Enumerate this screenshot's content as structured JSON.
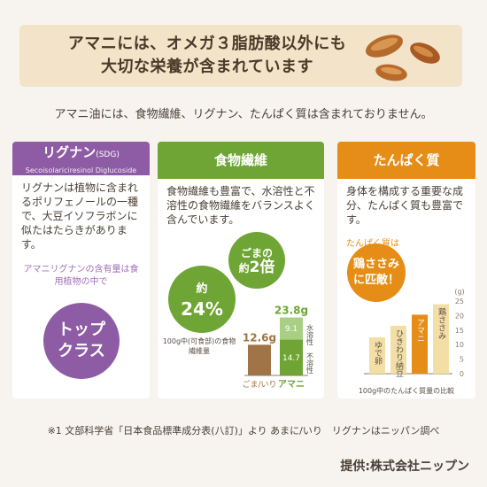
{
  "banner": {
    "title_line1": "アマニには、オメガ３脂肪酸以外にも",
    "title_line2": "大切な栄養が含まれています"
  },
  "intro": "アマニ油には、食物繊維、リグナン、たんぱく質は含まれておりません。",
  "lignan": {
    "header": "リグナン",
    "header_abbr": "(SDG)",
    "header_en": "Secoisolariciresinol Diglucoside",
    "text": "リグナンは植物に含まれるポリフェノールの一種で、大豆イソフラボンに似たはたらきがあります。",
    "note": "アマニリグナンの含有量は食用植物の中で",
    "badge_line1": "トップ",
    "badge_line2": "クラス"
  },
  "fiber": {
    "header": "食物繊維",
    "text": "食物繊維も豊富で、水溶性と不溶性の食物繊維をバランスよく含んでいます。",
    "bubble1_line1": "ごまの",
    "bubble1_prefix": "約",
    "bubble1_value": "2倍",
    "bubble2_prefix": "約",
    "bubble2_value": "24%",
    "chart_note": "100g中(可食部)の食物繊維量",
    "soluble_label": "水溶性",
    "insoluble_label": "不溶性",
    "sesame_label": "ごま/いり",
    "flax_label": "アマニ",
    "sesame_value_label": "12.6g",
    "flax_total_label": "23.8g",
    "flax_soluble_label": "9.1",
    "flax_insoluble_label": "14.7",
    "color": "#6fa534"
  },
  "protein": {
    "header": "たんぱく質",
    "text": "身体を構成する重要な成分、たんぱく質も豊富です。",
    "note": "たんぱく質は",
    "bubble_line1": "鶏ささみ",
    "bubble_line2": "に匹敵！",
    "unit": "(g)",
    "yticks": [
      "25",
      "20",
      "15",
      "10",
      "5",
      "0"
    ],
    "chart_caption": "100g中のたんぱく質量の比較",
    "bar_labels": [
      "ゆで卵",
      "ひきわり納豆",
      "アマニ",
      "鶏ささみ"
    ],
    "color": "#e58d16"
  },
  "footnote": "※1 文部科学省「日本食品標準成分表(八訂)」より あまに/いり　リグナンはニッパン調べ",
  "provider": "提供:株式会社ニップン",
  "chart_data": [
    {
      "type": "bar",
      "categories": [
        "ごま/いり",
        "アマニ"
      ],
      "series": [
        {
          "name": "不溶性",
          "values": [
            12.6,
            14.7
          ]
        },
        {
          "name": "水溶性",
          "values": [
            0,
            9.1
          ]
        }
      ],
      "title": "",
      "ylabel": "",
      "stacked": true
    },
    {
      "type": "bar",
      "categories": [
        "ゆで卵",
        "ひきわり納豆",
        "アマニ",
        "鶏ささみ"
      ],
      "values": [
        12.5,
        16.5,
        20.3,
        23.9
      ],
      "ylabel": "(g)",
      "ylim": [
        0,
        25
      ],
      "title": ""
    }
  ]
}
